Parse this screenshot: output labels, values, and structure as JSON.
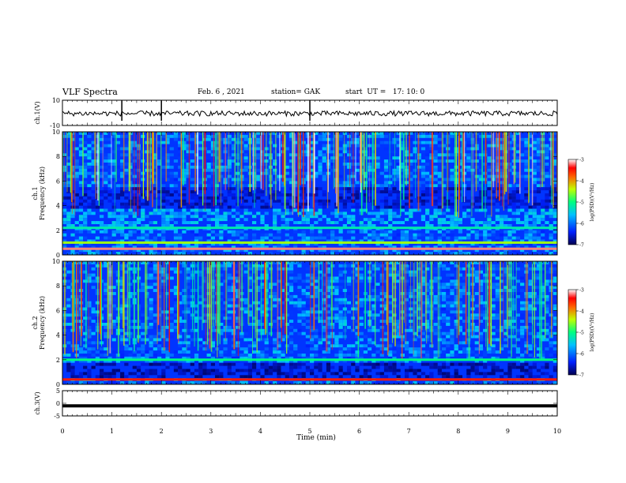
{
  "header": {
    "title": "VLF Spectra",
    "date": "Feb. 6 , 2021",
    "station": "station= GAK",
    "start_ut": "start  UT =   17: 10: 0"
  },
  "colors": {
    "background": "#ffffff",
    "spectrogram_low": "#000060",
    "spectrogram_high": "#ff0000"
  },
  "chart_data": [
    {
      "type": "line",
      "id": "ch1-waveform",
      "ylabel": "ch.1(V)",
      "ylim": [
        -10,
        10
      ],
      "y_ticks": [
        "10",
        "-10"
      ],
      "xlim": [
        0,
        10
      ],
      "values_summary": "noisy waveform near 0 V with spikes at about 1.2, 2.0 and 5.0 min",
      "spikes_min": [
        1.2,
        2.0,
        5.0
      ]
    },
    {
      "type": "heatmap",
      "id": "ch1-spectrogram",
      "ylabel": "ch.1\nFrequency (kHz)",
      "ylim": [
        0,
        10
      ],
      "y_ticks": [
        "0",
        "2",
        "4",
        "6",
        "8",
        "10"
      ],
      "xlim": [
        0,
        10
      ],
      "colorbar": {
        "label": "log(PSD)(V²/Hz)",
        "range": [
          -7,
          -3
        ],
        "ticks": [
          "-3",
          "-4",
          "-5",
          "-6",
          "-7"
        ]
      },
      "features": [
        {
          "kind": "band",
          "freq_khz": 0.5,
          "level": -3.2
        },
        {
          "kind": "band",
          "freq_khz": 1.0,
          "level": -4.5
        },
        {
          "kind": "band",
          "freq_khz": 2.2,
          "level": -5.2
        },
        {
          "kind": "diffuse",
          "freq_range_khz": [
            2,
            4
          ],
          "level": -5.7
        },
        {
          "kind": "dark-band",
          "freq_range_khz": [
            3.8,
            5.5
          ],
          "level": -6.8
        },
        {
          "kind": "sferics",
          "freq_range_khz": [
            6,
            10
          ],
          "level": -4.0
        }
      ]
    },
    {
      "type": "heatmap",
      "id": "ch2-spectrogram",
      "ylabel": "ch.2\nFrequency (kHz)",
      "ylim": [
        0,
        10
      ],
      "y_ticks": [
        "0",
        "2",
        "4",
        "6",
        "8",
        "10"
      ],
      "xlim": [
        0,
        10
      ],
      "colorbar": {
        "label": "log(PSD)(V²/Hz)",
        "range": [
          -7,
          -3
        ],
        "ticks": [
          "-3",
          "-4",
          "-5",
          "-6",
          "-7"
        ]
      },
      "features": [
        {
          "kind": "band",
          "freq_khz": 0.4,
          "level": -3.5
        },
        {
          "kind": "band",
          "freq_khz": 2.0,
          "level": -5.0
        },
        {
          "kind": "dark-band",
          "freq_range_khz": [
            0.6,
            1.8
          ],
          "level": -6.9
        },
        {
          "kind": "sferics",
          "freq_range_khz": [
            5,
            10
          ],
          "level": -4.2
        }
      ]
    },
    {
      "type": "line",
      "id": "ch3-waveform",
      "ylabel": "ch.3(V)",
      "ylim": [
        -5,
        5
      ],
      "y_ticks": [
        "5",
        "0",
        "-5"
      ],
      "xlim": [
        0,
        10
      ],
      "values_summary": "flat line at about -1 V",
      "level_v": -1.0
    }
  ],
  "xaxis": {
    "label": "Time  (min)",
    "ticks": [
      "0",
      "1",
      "2",
      "3",
      "4",
      "5",
      "6",
      "7",
      "8",
      "9",
      "10"
    ]
  }
}
